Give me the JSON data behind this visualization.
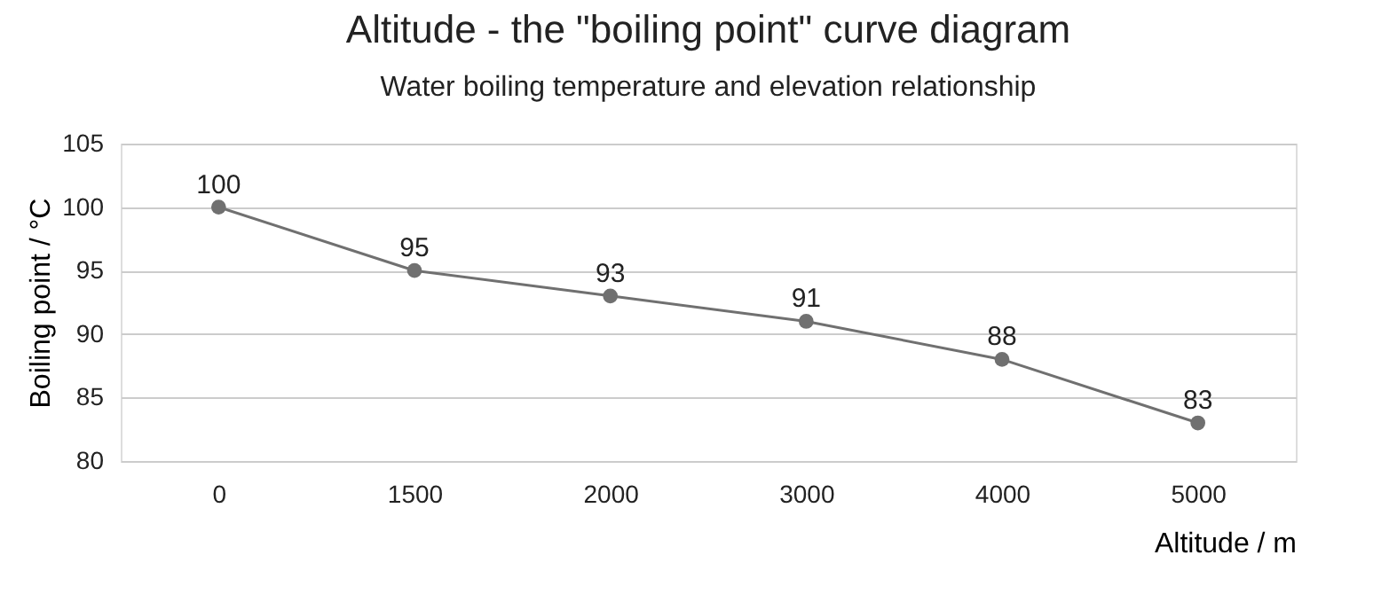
{
  "chart_data": {
    "type": "line",
    "title": "Altitude - the \"boiling point\" curve diagram",
    "subtitle": "Water boiling temperature and elevation relationship",
    "xlabel": "Altitude / m",
    "ylabel": "Boiling point / °C",
    "categories": [
      "0",
      "1500",
      "2000",
      "3000",
      "4000",
      "5000"
    ],
    "series": [
      {
        "color": "#707070",
        "values": [
          100,
          95,
          93,
          91,
          88,
          83
        ]
      }
    ],
    "ylim": [
      80,
      105
    ],
    "yticks": [
      80,
      85,
      90,
      95,
      100,
      105
    ],
    "grid": "y",
    "marker": "circle",
    "line_style": "solid",
    "data_labels": true
  }
}
